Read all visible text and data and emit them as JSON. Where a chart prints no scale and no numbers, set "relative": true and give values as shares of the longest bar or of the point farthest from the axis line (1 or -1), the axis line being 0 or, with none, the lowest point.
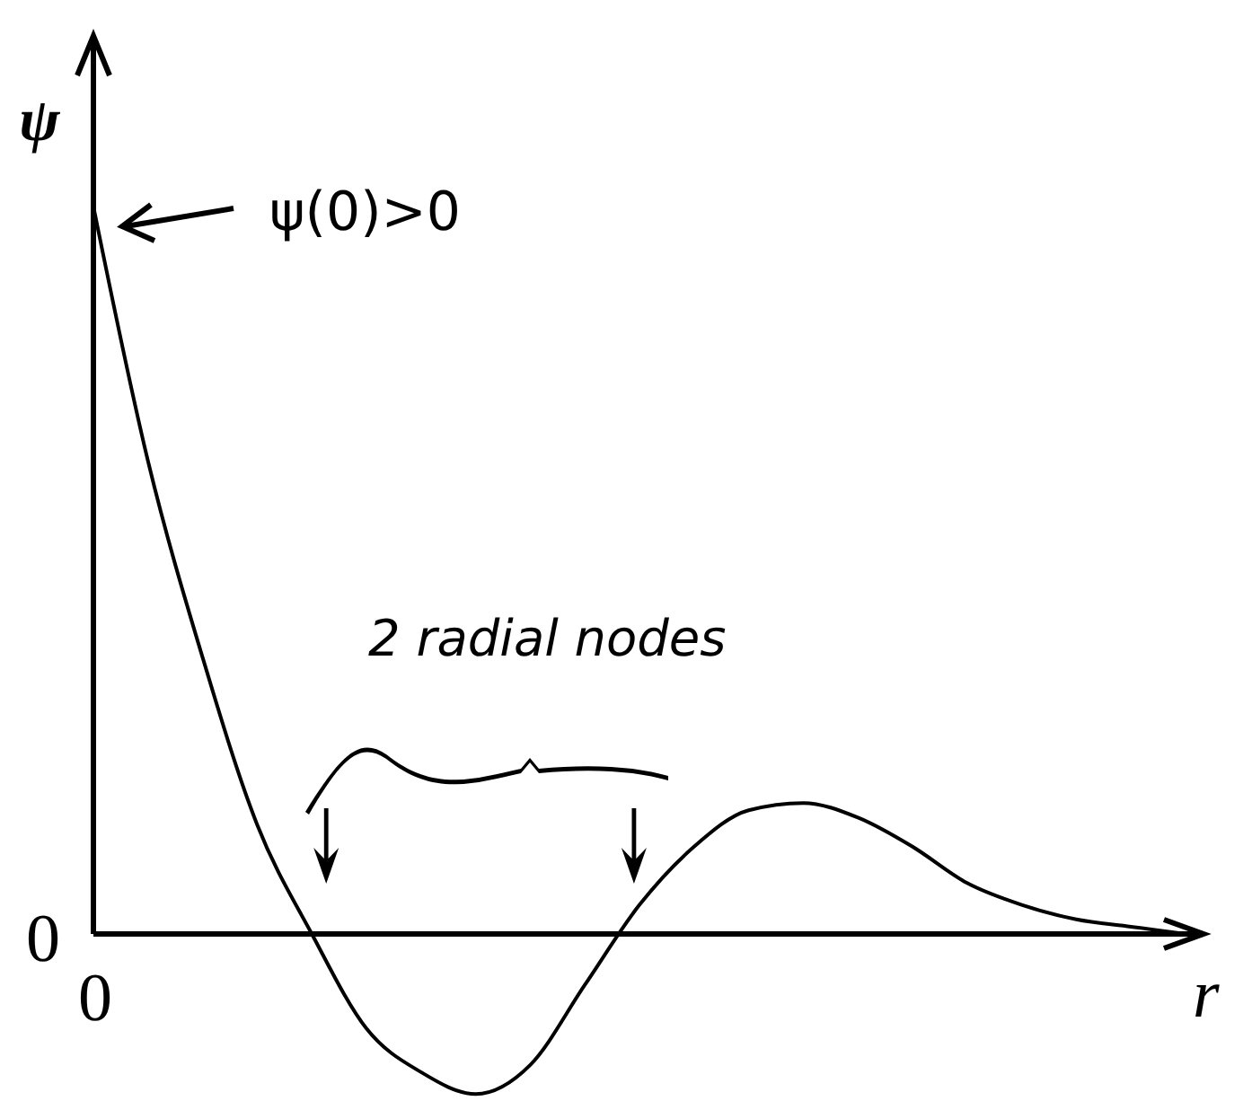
{
  "chart_data": {
    "type": "line",
    "relative": true,
    "ylabel": "ψ",
    "xlabel": "r",
    "categories": [
      null,
      null,
      null,
      null,
      null,
      null,
      null,
      null,
      null,
      null,
      null,
      null,
      null,
      null,
      null,
      null,
      null,
      null,
      null,
      null,
      null
    ],
    "series": [
      {
        "color": "#000000",
        "values": [
          1.0,
          0.65,
          0.38,
          0.15,
          0.0,
          -0.13,
          -0.19,
          -0.22,
          -0.18,
          -0.07,
          0.04,
          0.12,
          0.17,
          0.18,
          0.16,
          0.12,
          0.07,
          0.04,
          0.02,
          0.01,
          0.0
        ]
      }
    ],
    "annotations": [
      "ψ(0)>0",
      "2 radial nodes",
      "0",
      "0"
    ],
    "marker": "none",
    "line_style": "solid"
  }
}
